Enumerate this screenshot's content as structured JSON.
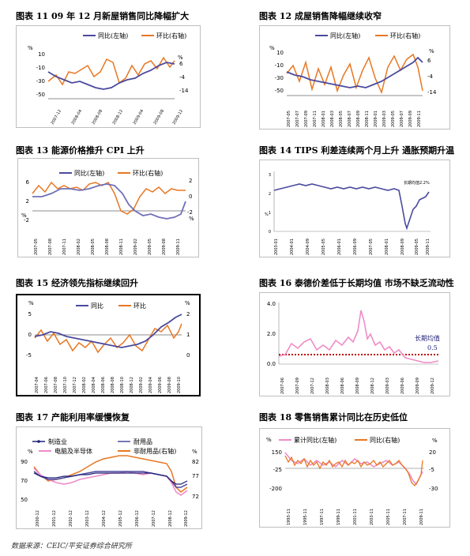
{
  "source": "数据来源：CEIC/平安证券综合研究所",
  "colors": {
    "blue": "#4a4a9e",
    "orange": "#e87722",
    "pink": "#ef8cc8",
    "red": "#c00000",
    "navy": "#1f1f7a",
    "lightblue": "#7fa7d6"
  },
  "figures": [
    {
      "id": "fig11",
      "caption": "图表 11    09 年 12 月新屋销售同比降幅扩大",
      "legend": [
        "同比(左轴)",
        "环比(右轴)"
      ],
      "y_left_unit": "%",
      "y_left_ticks": [
        "10",
        "-10",
        "-30",
        "-50"
      ],
      "y_right_unit": "%",
      "y_right_ticks": [
        "6",
        "-4",
        "-14"
      ],
      "x_ticks": [
        "2007-12",
        "2008-04",
        "2008-08",
        "2008-12",
        "2009-04",
        "2009-08",
        "2009-12"
      ]
    },
    {
      "id": "fig12",
      "caption": "图表 12    成屋销售降幅继续收窄",
      "legend": [
        "同比(左轴)",
        "环比(右轴)"
      ],
      "y_left_unit": "%",
      "y_left_ticks": [
        "10",
        "-10",
        "-30",
        "-50"
      ],
      "y_right_unit": "%",
      "y_right_ticks": [
        "6",
        "-4",
        "-14"
      ],
      "x_ticks": [
        "2007-05",
        "2007-07",
        "2007-09",
        "2007-11",
        "2008-01",
        "2008-03",
        "2008-05",
        "2008-07",
        "2008-09",
        "2008-11",
        "2009-01",
        "2009-03",
        "2009-05",
        "2009-07",
        "2009-09",
        "2009-11"
      ]
    },
    {
      "id": "fig13",
      "caption": "图表 13    能源价格推升 CPI 上升",
      "legend": [
        "同比(左轴)",
        "环比(右轴)"
      ],
      "y_left_unit": "%",
      "y_left_ticks": [
        "6",
        "2",
        "-2"
      ],
      "y_right_unit": "%",
      "y_right_ticks": [
        "2",
        "0",
        "-2"
      ],
      "x_ticks": [
        "2007-05",
        "2007-08",
        "2007-11",
        "2008-02",
        "2008-05",
        "2008-08",
        "2008-11",
        "2009-02",
        "2009-05",
        "2009-08",
        "2009-11"
      ]
    },
    {
      "id": "fig14",
      "caption": "图表 14    TIPS 利差连续两个月上升  通胀预期升温",
      "annotation": "长期均值2.2%",
      "y_unit": "%",
      "y_ticks": [
        "3",
        "2",
        "1",
        "0"
      ],
      "x_ticks": [
        "2003-01",
        "2004-01",
        "2004-09",
        "2005-05",
        "2006-01",
        "2006-09",
        "2007-05",
        "2008-01",
        "2008-09",
        "2009-05",
        "2009-11"
      ]
    },
    {
      "id": "fig15",
      "caption": "图表 15    经济领先指标继续回升",
      "legend": [
        "同比",
        "环比"
      ],
      "y_left_unit": "%",
      "y_left_ticks": [
        "5",
        "0",
        "-5"
      ],
      "y_right_unit": "%",
      "y_right_ticks": [
        "2",
        "1",
        "0"
      ],
      "x_ticks": [
        "2007-04",
        "2007-06",
        "2007-08",
        "2007-10",
        "2007-12",
        "2008-02",
        "2008-04",
        "2008-06",
        "2008-08",
        "2008-10",
        "2008-12",
        "2009-02",
        "2009-04",
        "2009-06",
        "2009-08",
        "2009-10"
      ]
    },
    {
      "id": "fig16",
      "caption": "图表 16  泰德价差低于长期均值  市场不缺乏流动性",
      "annotation_label": "长期均值",
      "annotation_value": "0.5",
      "y_ticks": [
        "4.0",
        "2.0",
        "0.0"
      ],
      "x_ticks": [
        "2007-06",
        "2007-09",
        "2007-12",
        "2008-03",
        "2008-06",
        "2008-09",
        "2008-12",
        "2009-03",
        "2009-06",
        "2009-09",
        "2009-12"
      ]
    },
    {
      "id": "fig17",
      "caption": "图表 17    产能利用率缓慢恢复",
      "legend": [
        "制造业",
        "耐用品",
        "电脑及半导体",
        "非耐用品(右轴)"
      ],
      "y_left_unit": "%",
      "y_left_ticks": [
        "90",
        "70",
        "50"
      ],
      "y_right_unit": "%",
      "y_right_ticks": [
        "82",
        "77",
        "72"
      ],
      "x_ticks": [
        "2000-12",
        "2001-12",
        "2002-12",
        "2003-12",
        "2004-12",
        "2005-12",
        "2006-12",
        "2007-12",
        "2008-12",
        "2009-12"
      ]
    },
    {
      "id": "fig18",
      "caption": "图表 18    零售销售累计同比在历史低位",
      "legend": [
        "累计同比(左轴)",
        "同比(右轴)"
      ],
      "y_left_unit": "%",
      "y_left_ticks": [
        "150",
        "-25",
        "-200"
      ],
      "y_right_unit": "%",
      "y_right_ticks": [
        "20",
        "-5",
        "-30"
      ],
      "x_ticks": [
        "1993-11",
        "1995-11",
        "1997-11",
        "1999-11",
        "2001-11",
        "2003-11",
        "2005-11",
        "2007-11",
        "2009-11"
      ]
    }
  ]
}
